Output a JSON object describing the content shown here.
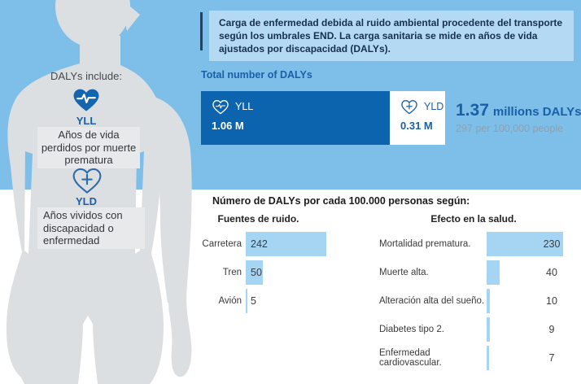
{
  "header": {
    "text": "Carga de enfermedad debida al ruido ambiental procedente del transporte según los umbrales END. La carga sanitaria se mide en años de vida ajustados por discapacidad (DALYs)."
  },
  "silhouette": {
    "intro": "DALYs include:",
    "yll": {
      "label": "YLL",
      "icon": "heart-pulse-icon",
      "description": "Años de vida perdidos por muerte prematura"
    },
    "yld": {
      "label": "YLD",
      "icon": "heart-plus-icon",
      "description": "Años vividos con discapacidad o enfermedad"
    }
  },
  "totals": {
    "section_label": "Total number of DALYs",
    "yll": {
      "label": "YLL",
      "value": "1.06 M",
      "millions": 1.06,
      "icon": "heart-pulse-icon"
    },
    "yld": {
      "label": "YLD",
      "value": "0.31 M",
      "millions": 0.31,
      "icon": "heart-plus-icon"
    },
    "total_big": "1.37",
    "total_unit": "millions DALYs",
    "per_capita": "297 per 100,000 people"
  },
  "charts_section": {
    "title": "Número de DALYs por cada 100.000 personas según:"
  },
  "chart_data": [
    {
      "type": "bar",
      "orientation": "horizontal",
      "title": "Fuentes de ruido.",
      "categories": [
        "Carretera",
        "Tren",
        "Avión"
      ],
      "values": [
        242,
        50,
        5
      ],
      "xlim": [
        0,
        250
      ],
      "value_labels": "inside-left",
      "unit": "DALYs per 100,000 people"
    },
    {
      "type": "bar",
      "orientation": "horizontal",
      "title": "Efecto en la salud.",
      "categories": [
        "Mortalidad prematura.",
        "Muerte alta.",
        "Alteración alta del sueño.",
        "Diabetes tipo 2.",
        "Enfermedad cardiovascular."
      ],
      "values": [
        230,
        40,
        10,
        9,
        7
      ],
      "xlim": [
        0,
        250
      ],
      "value_labels": "right",
      "unit": "DALYs per 100,000 people"
    }
  ],
  "colors": {
    "background_blue": "#7DBFE8",
    "header_box_blue": "#B3D9F3",
    "header_accent": "#1F4566",
    "text_navy": "#16304F",
    "blue_text": "#1A5FA8",
    "accent_dark_blue": "#0B64AD",
    "gray_text": "#93A0AC",
    "bar_light_blue": "#A6D5F4",
    "silhouette_gray": "#DCDFE2",
    "desc_box_gray": "#E7E9EA",
    "chart_text": "#3C3C3C",
    "panel_white": "#FFFFFF"
  }
}
